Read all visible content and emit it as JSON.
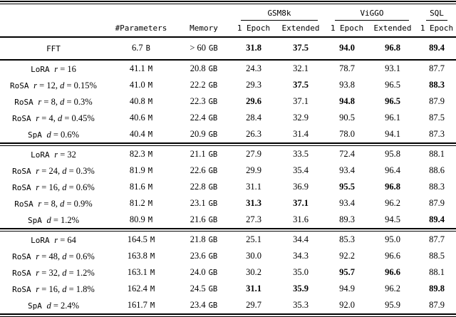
{
  "colors": {
    "text": "#000000",
    "background": "#ffffff",
    "rule": "#000000"
  },
  "table": {
    "group_headers": [
      {
        "label": "GSM8k",
        "span": 2
      },
      {
        "label": "ViGGO",
        "span": 2
      },
      {
        "label": "SQL",
        "span": 1
      }
    ],
    "col_headers": {
      "parameters": "#Parameters",
      "memory": "Memory"
    },
    "subheaders": [
      "1 Epoch",
      "Extended",
      "1 Epoch",
      "Extended",
      "1 Epoch"
    ],
    "fft": {
      "method": [
        {
          "t": "FFT",
          "s": "tt"
        }
      ],
      "parameters": {
        "value": "6.7",
        "unit": "B"
      },
      "memory": {
        "value": "> 60",
        "unit": "GB"
      },
      "scores": [
        {
          "v": "31.8",
          "b": true
        },
        {
          "v": "37.5",
          "b": true
        },
        {
          "v": "94.0",
          "b": true
        },
        {
          "v": "96.8",
          "b": true
        },
        {
          "v": "89.4",
          "b": true
        }
      ]
    },
    "groups": [
      {
        "rows": [
          {
            "method": [
              {
                "t": "LoRA ",
                "s": "tt"
              },
              {
                "t": "r",
                "s": "it"
              },
              {
                "t": " = 16",
                "s": "rm"
              }
            ],
            "parameters": {
              "value": "41.1",
              "unit": "M"
            },
            "memory": {
              "value": "20.8",
              "unit": "GB"
            },
            "scores": [
              {
                "v": "24.3",
                "b": false
              },
              {
                "v": "32.1",
                "b": false
              },
              {
                "v": "78.7",
                "b": false
              },
              {
                "v": "93.1",
                "b": false
              },
              {
                "v": "87.7",
                "b": false
              }
            ]
          },
          {
            "method": [
              {
                "t": "RoSA ",
                "s": "tt"
              },
              {
                "t": "r",
                "s": "it"
              },
              {
                "t": " = 12, ",
                "s": "rm"
              },
              {
                "t": "d",
                "s": "it"
              },
              {
                "t": " = 0.15%",
                "s": "rm"
              }
            ],
            "parameters": {
              "value": "41.0",
              "unit": "M"
            },
            "memory": {
              "value": "22.2",
              "unit": "GB"
            },
            "scores": [
              {
                "v": "29.3",
                "b": false
              },
              {
                "v": "37.5",
                "b": true
              },
              {
                "v": "93.8",
                "b": false
              },
              {
                "v": "96.5",
                "b": false
              },
              {
                "v": "88.3",
                "b": true
              }
            ]
          },
          {
            "method": [
              {
                "t": "RoSA ",
                "s": "tt"
              },
              {
                "t": "r",
                "s": "it"
              },
              {
                "t": " = 8, ",
                "s": "rm"
              },
              {
                "t": "d",
                "s": "it"
              },
              {
                "t": " = 0.3%",
                "s": "rm"
              }
            ],
            "parameters": {
              "value": "40.8",
              "unit": "M"
            },
            "memory": {
              "value": "22.3",
              "unit": "GB"
            },
            "scores": [
              {
                "v": "29.6",
                "b": true
              },
              {
                "v": "37.1",
                "b": false
              },
              {
                "v": "94.8",
                "b": true
              },
              {
                "v": "96.5",
                "b": true
              },
              {
                "v": "87.9",
                "b": false
              }
            ]
          },
          {
            "method": [
              {
                "t": "RoSA ",
                "s": "tt"
              },
              {
                "t": "r",
                "s": "it"
              },
              {
                "t": " = 4, ",
                "s": "rm"
              },
              {
                "t": "d",
                "s": "it"
              },
              {
                "t": " = 0.45%",
                "s": "rm"
              }
            ],
            "parameters": {
              "value": "40.6",
              "unit": "M"
            },
            "memory": {
              "value": "22.4",
              "unit": "GB"
            },
            "scores": [
              {
                "v": "28.4",
                "b": false
              },
              {
                "v": "32.9",
                "b": false
              },
              {
                "v": "90.5",
                "b": false
              },
              {
                "v": "96.1",
                "b": false
              },
              {
                "v": "87.5",
                "b": false
              }
            ]
          },
          {
            "method": [
              {
                "t": "SpA ",
                "s": "tt"
              },
              {
                "t": "d",
                "s": "it"
              },
              {
                "t": " = 0.6%",
                "s": "rm"
              }
            ],
            "parameters": {
              "value": "40.4",
              "unit": "M"
            },
            "memory": {
              "value": "20.9",
              "unit": "GB"
            },
            "scores": [
              {
                "v": "26.3",
                "b": false
              },
              {
                "v": "31.4",
                "b": false
              },
              {
                "v": "78.0",
                "b": false
              },
              {
                "v": "94.1",
                "b": false
              },
              {
                "v": "87.3",
                "b": false
              }
            ]
          }
        ]
      },
      {
        "rows": [
          {
            "method": [
              {
                "t": "LoRA ",
                "s": "tt"
              },
              {
                "t": "r",
                "s": "it"
              },
              {
                "t": " = 32",
                "s": "rm"
              }
            ],
            "parameters": {
              "value": "82.3",
              "unit": "M"
            },
            "memory": {
              "value": "21.1",
              "unit": "GB"
            },
            "scores": [
              {
                "v": "27.9",
                "b": false
              },
              {
                "v": "33.5",
                "b": false
              },
              {
                "v": "72.4",
                "b": false
              },
              {
                "v": "95.8",
                "b": false
              },
              {
                "v": "88.1",
                "b": false
              }
            ]
          },
          {
            "method": [
              {
                "t": "RoSA ",
                "s": "tt"
              },
              {
                "t": "r",
                "s": "it"
              },
              {
                "t": " = 24, ",
                "s": "rm"
              },
              {
                "t": "d",
                "s": "it"
              },
              {
                "t": " = 0.3%",
                "s": "rm"
              }
            ],
            "parameters": {
              "value": "81.9",
              "unit": "M"
            },
            "memory": {
              "value": "22.6",
              "unit": "GB"
            },
            "scores": [
              {
                "v": "29.9",
                "b": false
              },
              {
                "v": "35.4",
                "b": false
              },
              {
                "v": "93.4",
                "b": false
              },
              {
                "v": "96.4",
                "b": false
              },
              {
                "v": "88.6",
                "b": false
              }
            ]
          },
          {
            "method": [
              {
                "t": "RoSA ",
                "s": "tt"
              },
              {
                "t": "r",
                "s": "it"
              },
              {
                "t": " = 16, ",
                "s": "rm"
              },
              {
                "t": "d",
                "s": "it"
              },
              {
                "t": " = 0.6%",
                "s": "rm"
              }
            ],
            "parameters": {
              "value": "81.6",
              "unit": "M"
            },
            "memory": {
              "value": "22.8",
              "unit": "GB"
            },
            "scores": [
              {
                "v": "31.1",
                "b": false
              },
              {
                "v": "36.9",
                "b": false
              },
              {
                "v": "95.5",
                "b": true
              },
              {
                "v": "96.8",
                "b": true
              },
              {
                "v": "88.3",
                "b": false
              }
            ]
          },
          {
            "method": [
              {
                "t": "RoSA ",
                "s": "tt"
              },
              {
                "t": "r",
                "s": "it"
              },
              {
                "t": " = 8, ",
                "s": "rm"
              },
              {
                "t": "d",
                "s": "it"
              },
              {
                "t": " = 0.9%",
                "s": "rm"
              }
            ],
            "parameters": {
              "value": "81.2",
              "unit": "M"
            },
            "memory": {
              "value": "23.1",
              "unit": "GB"
            },
            "scores": [
              {
                "v": "31.3",
                "b": true
              },
              {
                "v": "37.1",
                "b": true
              },
              {
                "v": "93.4",
                "b": false
              },
              {
                "v": "96.2",
                "b": false
              },
              {
                "v": "87.9",
                "b": false
              }
            ]
          },
          {
            "method": [
              {
                "t": "SpA ",
                "s": "tt"
              },
              {
                "t": "d",
                "s": "it"
              },
              {
                "t": " = 1.2%",
                "s": "rm"
              }
            ],
            "parameters": {
              "value": "80.9",
              "unit": "M"
            },
            "memory": {
              "value": "21.6",
              "unit": "GB"
            },
            "scores": [
              {
                "v": "27.3",
                "b": false
              },
              {
                "v": "31.6",
                "b": false
              },
              {
                "v": "89.3",
                "b": false
              },
              {
                "v": "94.5",
                "b": false
              },
              {
                "v": "89.4",
                "b": true
              }
            ]
          }
        ]
      },
      {
        "rows": [
          {
            "method": [
              {
                "t": "LoRA ",
                "s": "tt"
              },
              {
                "t": "r",
                "s": "it"
              },
              {
                "t": " = 64",
                "s": "rm"
              }
            ],
            "parameters": {
              "value": "164.5",
              "unit": "M"
            },
            "memory": {
              "value": "21.8",
              "unit": "GB"
            },
            "scores": [
              {
                "v": "25.1",
                "b": false
              },
              {
                "v": "34.4",
                "b": false
              },
              {
                "v": "85.3",
                "b": false
              },
              {
                "v": "95.0",
                "b": false
              },
              {
                "v": "87.7",
                "b": false
              }
            ]
          },
          {
            "method": [
              {
                "t": "RoSA ",
                "s": "tt"
              },
              {
                "t": "r",
                "s": "it"
              },
              {
                "t": " = 48, ",
                "s": "rm"
              },
              {
                "t": "d",
                "s": "it"
              },
              {
                "t": " = 0.6%",
                "s": "rm"
              }
            ],
            "parameters": {
              "value": "163.8",
              "unit": "M"
            },
            "memory": {
              "value": "23.6",
              "unit": "GB"
            },
            "scores": [
              {
                "v": "30.0",
                "b": false
              },
              {
                "v": "34.3",
                "b": false
              },
              {
                "v": "92.2",
                "b": false
              },
              {
                "v": "96.6",
                "b": false
              },
              {
                "v": "88.5",
                "b": false
              }
            ]
          },
          {
            "method": [
              {
                "t": "RoSA ",
                "s": "tt"
              },
              {
                "t": "r",
                "s": "it"
              },
              {
                "t": " = 32, ",
                "s": "rm"
              },
              {
                "t": "d",
                "s": "it"
              },
              {
                "t": " = 1.2%",
                "s": "rm"
              }
            ],
            "parameters": {
              "value": "163.1",
              "unit": "M"
            },
            "memory": {
              "value": "24.0",
              "unit": "GB"
            },
            "scores": [
              {
                "v": "30.2",
                "b": false
              },
              {
                "v": "35.0",
                "b": false
              },
              {
                "v": "95.7",
                "b": true
              },
              {
                "v": "96.6",
                "b": true
              },
              {
                "v": "88.1",
                "b": false
              }
            ]
          },
          {
            "method": [
              {
                "t": "RoSA ",
                "s": "tt"
              },
              {
                "t": "r",
                "s": "it"
              },
              {
                "t": " = 16, ",
                "s": "rm"
              },
              {
                "t": "d",
                "s": "it"
              },
              {
                "t": " = 1.8%",
                "s": "rm"
              }
            ],
            "parameters": {
              "value": "162.4",
              "unit": "M"
            },
            "memory": {
              "value": "24.5",
              "unit": "GB"
            },
            "scores": [
              {
                "v": "31.1",
                "b": true
              },
              {
                "v": "35.9",
                "b": true
              },
              {
                "v": "94.9",
                "b": false
              },
              {
                "v": "96.2",
                "b": false
              },
              {
                "v": "89.8",
                "b": true
              }
            ]
          },
          {
            "method": [
              {
                "t": "SpA ",
                "s": "tt"
              },
              {
                "t": "d",
                "s": "it"
              },
              {
                "t": " = 2.4%",
                "s": "rm"
              }
            ],
            "parameters": {
              "value": "161.7",
              "unit": "M"
            },
            "memory": {
              "value": "23.4",
              "unit": "GB"
            },
            "scores": [
              {
                "v": "29.7",
                "b": false
              },
              {
                "v": "35.3",
                "b": false
              },
              {
                "v": "92.0",
                "b": false
              },
              {
                "v": "95.9",
                "b": false
              },
              {
                "v": "87.9",
                "b": false
              }
            ]
          }
        ]
      }
    ]
  }
}
